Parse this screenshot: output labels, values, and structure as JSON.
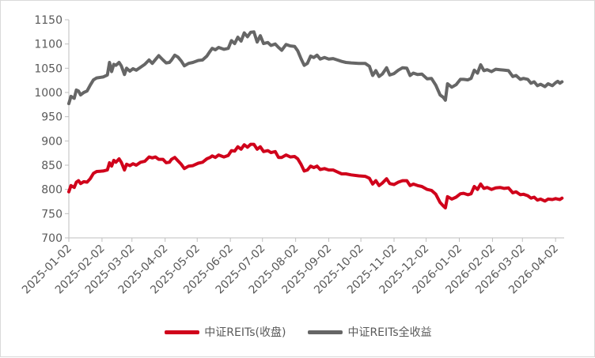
{
  "chart_data": {
    "type": "line",
    "title": "",
    "xlabel": "",
    "ylabel": "",
    "ylim": [
      700,
      1150
    ],
    "yticks": [
      700,
      750,
      800,
      850,
      900,
      950,
      1000,
      1050,
      1100,
      1150
    ],
    "xticks": [
      "2025-01-02",
      "2025-02-02",
      "2025-03-02",
      "2025-04-02",
      "2025-05-02",
      "2025-06-02",
      "2025-07-02",
      "2025-08-02",
      "2025-09-02",
      "2025-10-02",
      "2025-11-02",
      "2025-12-02",
      "2026-01-02",
      "2026-02-02",
      "2026-03-02",
      "2026-04-02"
    ],
    "legend_position": "bottom",
    "grid": false,
    "series": [
      {
        "name": "中证REITs(收盘)",
        "color": "#d0021b",
        "points": [
          [
            "2025-01-02",
            795
          ],
          [
            "2025-01-04",
            808
          ],
          [
            "2025-01-07",
            804
          ],
          [
            "2025-01-09",
            815
          ],
          [
            "2025-01-11",
            818
          ],
          [
            "2025-01-13",
            812
          ],
          [
            "2025-01-16",
            816
          ],
          [
            "2025-01-19",
            815
          ],
          [
            "2025-01-22",
            822
          ],
          [
            "2025-01-25",
            833
          ],
          [
            "2025-01-28",
            837
          ],
          [
            "2025-02-03",
            838
          ],
          [
            "2025-02-07",
            840
          ],
          [
            "2025-02-09",
            855
          ],
          [
            "2025-02-11",
            848
          ],
          [
            "2025-02-13",
            860
          ],
          [
            "2025-02-15",
            856
          ],
          [
            "2025-02-18",
            863
          ],
          [
            "2025-02-20",
            856
          ],
          [
            "2025-02-23",
            840
          ],
          [
            "2025-02-25",
            852
          ],
          [
            "2025-02-28",
            849
          ],
          [
            "2025-03-03",
            853
          ],
          [
            "2025-03-06",
            850
          ],
          [
            "2025-03-10",
            856
          ],
          [
            "2025-03-14",
            858
          ],
          [
            "2025-03-18",
            867
          ],
          [
            "2025-03-21",
            865
          ],
          [
            "2025-03-24",
            867
          ],
          [
            "2025-03-27",
            862
          ],
          [
            "2025-03-31",
            862
          ],
          [
            "2025-04-03",
            855
          ],
          [
            "2025-04-06",
            856
          ],
          [
            "2025-04-08",
            862
          ],
          [
            "2025-04-11",
            866
          ],
          [
            "2025-04-14",
            859
          ],
          [
            "2025-04-17",
            852
          ],
          [
            "2025-04-20",
            843
          ],
          [
            "2025-04-24",
            848
          ],
          [
            "2025-04-28",
            849
          ],
          [
            "2025-05-03",
            854
          ],
          [
            "2025-05-07",
            856
          ],
          [
            "2025-05-11",
            863
          ],
          [
            "2025-05-14",
            866
          ],
          [
            "2025-05-16",
            869
          ],
          [
            "2025-05-19",
            866
          ],
          [
            "2025-05-22",
            871
          ],
          [
            "2025-05-27",
            867
          ],
          [
            "2025-05-31",
            870
          ],
          [
            "2025-06-03",
            880
          ],
          [
            "2025-06-06",
            879
          ],
          [
            "2025-06-09",
            888
          ],
          [
            "2025-06-12",
            883
          ],
          [
            "2025-06-15",
            892
          ],
          [
            "2025-06-18",
            887
          ],
          [
            "2025-06-21",
            893
          ],
          [
            "2025-06-24",
            893
          ],
          [
            "2025-06-27",
            883
          ],
          [
            "2025-06-30",
            888
          ],
          [
            "2025-07-03",
            878
          ],
          [
            "2025-07-07",
            880
          ],
          [
            "2025-07-10",
            876
          ],
          [
            "2025-07-14",
            878
          ],
          [
            "2025-07-17",
            866
          ],
          [
            "2025-07-20",
            866
          ],
          [
            "2025-07-24",
            871
          ],
          [
            "2025-07-28",
            867
          ],
          [
            "2025-08-01",
            868
          ],
          [
            "2025-08-04",
            863
          ],
          [
            "2025-08-07",
            852
          ],
          [
            "2025-08-10",
            838
          ],
          [
            "2025-08-13",
            840
          ],
          [
            "2025-08-16",
            848
          ],
          [
            "2025-08-19",
            845
          ],
          [
            "2025-08-22",
            848
          ],
          [
            "2025-08-25",
            841
          ],
          [
            "2025-08-29",
            843
          ],
          [
            "2025-09-02",
            840
          ],
          [
            "2025-09-06",
            840
          ],
          [
            "2025-09-10",
            836
          ],
          [
            "2025-09-14",
            832
          ],
          [
            "2025-09-18",
            832
          ],
          [
            "2025-09-23",
            830
          ],
          [
            "2025-09-30",
            828
          ],
          [
            "2025-10-06",
            827
          ],
          [
            "2025-10-10",
            823
          ],
          [
            "2025-10-13",
            811
          ],
          [
            "2025-10-16",
            818
          ],
          [
            "2025-10-19",
            808
          ],
          [
            "2025-10-22",
            813
          ],
          [
            "2025-10-26",
            822
          ],
          [
            "2025-10-29",
            812
          ],
          [
            "2025-11-02",
            810
          ],
          [
            "2025-11-06",
            815
          ],
          [
            "2025-11-10",
            818
          ],
          [
            "2025-11-14",
            818
          ],
          [
            "2025-11-17",
            808
          ],
          [
            "2025-11-20",
            811
          ],
          [
            "2025-11-24",
            808
          ],
          [
            "2025-11-28",
            806
          ],
          [
            "2025-12-03",
            800
          ],
          [
            "2025-12-07",
            798
          ],
          [
            "2025-12-11",
            790
          ],
          [
            "2025-12-15",
            773
          ],
          [
            "2025-12-18",
            766
          ],
          [
            "2025-12-20",
            762
          ],
          [
            "2025-12-22",
            785
          ],
          [
            "2025-12-26",
            780
          ],
          [
            "2025-12-30",
            784
          ],
          [
            "2026-01-03",
            791
          ],
          [
            "2026-01-06",
            792
          ],
          [
            "2026-01-10",
            789
          ],
          [
            "2026-01-13",
            791
          ],
          [
            "2026-01-16",
            806
          ],
          [
            "2026-01-19",
            800
          ],
          [
            "2026-01-22",
            811
          ],
          [
            "2026-01-25",
            802
          ],
          [
            "2026-01-28",
            804
          ],
          [
            "2026-02-01",
            800
          ],
          [
            "2026-02-05",
            803
          ],
          [
            "2026-02-09",
            804
          ],
          [
            "2026-02-13",
            802
          ],
          [
            "2026-02-17",
            803
          ],
          [
            "2026-02-21",
            793
          ],
          [
            "2026-02-24",
            795
          ],
          [
            "2026-02-28",
            789
          ],
          [
            "2026-03-03",
            790
          ],
          [
            "2026-03-07",
            787
          ],
          [
            "2026-03-10",
            782
          ],
          [
            "2026-03-13",
            784
          ],
          [
            "2026-03-16",
            778
          ],
          [
            "2026-03-19",
            780
          ],
          [
            "2026-03-23",
            776
          ],
          [
            "2026-03-26",
            780
          ],
          [
            "2026-03-30",
            779
          ],
          [
            "2026-04-02",
            781
          ],
          [
            "2026-04-04",
            780
          ],
          [
            "2026-04-06",
            779
          ],
          [
            "2026-04-08",
            782
          ]
        ]
      },
      {
        "name": "中证REITs全收益",
        "color": "#666666",
        "points": [
          [
            "2025-01-02",
            977
          ],
          [
            "2025-01-04",
            992
          ],
          [
            "2025-01-07",
            988
          ],
          [
            "2025-01-09",
            1005
          ],
          [
            "2025-01-11",
            1003
          ],
          [
            "2025-01-13",
            995
          ],
          [
            "2025-01-16",
            1000
          ],
          [
            "2025-01-19",
            1003
          ],
          [
            "2025-01-22",
            1015
          ],
          [
            "2025-01-25",
            1026
          ],
          [
            "2025-01-28",
            1030
          ],
          [
            "2025-02-03",
            1032
          ],
          [
            "2025-02-07",
            1036
          ],
          [
            "2025-02-09",
            1062
          ],
          [
            "2025-02-11",
            1043
          ],
          [
            "2025-02-13",
            1058
          ],
          [
            "2025-02-15",
            1056
          ],
          [
            "2025-02-18",
            1062
          ],
          [
            "2025-02-20",
            1055
          ],
          [
            "2025-02-23",
            1037
          ],
          [
            "2025-02-25",
            1050
          ],
          [
            "2025-02-28",
            1044
          ],
          [
            "2025-03-03",
            1049
          ],
          [
            "2025-03-06",
            1046
          ],
          [
            "2025-03-10",
            1052
          ],
          [
            "2025-03-14",
            1058
          ],
          [
            "2025-03-18",
            1067
          ],
          [
            "2025-03-21",
            1060
          ],
          [
            "2025-03-24",
            1068
          ],
          [
            "2025-03-27",
            1076
          ],
          [
            "2025-03-31",
            1067
          ],
          [
            "2025-04-03",
            1061
          ],
          [
            "2025-04-06",
            1062
          ],
          [
            "2025-04-08",
            1067
          ],
          [
            "2025-04-11",
            1077
          ],
          [
            "2025-04-14",
            1073
          ],
          [
            "2025-04-17",
            1065
          ],
          [
            "2025-04-20",
            1055
          ],
          [
            "2025-04-24",
            1060
          ],
          [
            "2025-04-28",
            1062
          ],
          [
            "2025-05-03",
            1066
          ],
          [
            "2025-05-07",
            1067
          ],
          [
            "2025-05-11",
            1075
          ],
          [
            "2025-05-14",
            1085
          ],
          [
            "2025-05-16",
            1091
          ],
          [
            "2025-05-19",
            1088
          ],
          [
            "2025-05-22",
            1093
          ],
          [
            "2025-05-27",
            1089
          ],
          [
            "2025-05-31",
            1091
          ],
          [
            "2025-06-03",
            1107
          ],
          [
            "2025-06-06",
            1101
          ],
          [
            "2025-06-09",
            1114
          ],
          [
            "2025-06-12",
            1106
          ],
          [
            "2025-06-15",
            1123
          ],
          [
            "2025-06-18",
            1115
          ],
          [
            "2025-06-21",
            1124
          ],
          [
            "2025-06-24",
            1125
          ],
          [
            "2025-06-27",
            1104
          ],
          [
            "2025-06-30",
            1117
          ],
          [
            "2025-07-03",
            1101
          ],
          [
            "2025-07-07",
            1103
          ],
          [
            "2025-07-10",
            1097
          ],
          [
            "2025-07-14",
            1100
          ],
          [
            "2025-07-17",
            1093
          ],
          [
            "2025-07-20",
            1087
          ],
          [
            "2025-07-24",
            1099
          ],
          [
            "2025-07-28",
            1096
          ],
          [
            "2025-08-01",
            1095
          ],
          [
            "2025-08-04",
            1086
          ],
          [
            "2025-08-07",
            1070
          ],
          [
            "2025-08-10",
            1056
          ],
          [
            "2025-08-13",
            1060
          ],
          [
            "2025-08-16",
            1075
          ],
          [
            "2025-08-19",
            1072
          ],
          [
            "2025-08-22",
            1077
          ],
          [
            "2025-08-25",
            1069
          ],
          [
            "2025-08-29",
            1072
          ],
          [
            "2025-09-02",
            1069
          ],
          [
            "2025-09-06",
            1070
          ],
          [
            "2025-09-10",
            1067
          ],
          [
            "2025-09-14",
            1064
          ],
          [
            "2025-09-18",
            1062
          ],
          [
            "2025-09-23",
            1061
          ],
          [
            "2025-09-30",
            1060
          ],
          [
            "2025-10-06",
            1060
          ],
          [
            "2025-10-10",
            1054
          ],
          [
            "2025-10-13",
            1035
          ],
          [
            "2025-10-16",
            1045
          ],
          [
            "2025-10-19",
            1033
          ],
          [
            "2025-10-22",
            1038
          ],
          [
            "2025-10-26",
            1051
          ],
          [
            "2025-10-29",
            1036
          ],
          [
            "2025-11-02",
            1039
          ],
          [
            "2025-11-06",
            1046
          ],
          [
            "2025-11-10",
            1051
          ],
          [
            "2025-11-14",
            1050
          ],
          [
            "2025-11-17",
            1035
          ],
          [
            "2025-11-20",
            1040
          ],
          [
            "2025-11-24",
            1037
          ],
          [
            "2025-11-28",
            1038
          ],
          [
            "2025-12-03",
            1028
          ],
          [
            "2025-12-07",
            1029
          ],
          [
            "2025-12-11",
            1015
          ],
          [
            "2025-12-15",
            995
          ],
          [
            "2025-12-18",
            990
          ],
          [
            "2025-12-20",
            984
          ],
          [
            "2025-12-22",
            1018
          ],
          [
            "2025-12-26",
            1011
          ],
          [
            "2025-12-30",
            1016
          ],
          [
            "2026-01-03",
            1027
          ],
          [
            "2026-01-06",
            1027
          ],
          [
            "2026-01-10",
            1026
          ],
          [
            "2026-01-13",
            1029
          ],
          [
            "2026-01-16",
            1046
          ],
          [
            "2026-01-19",
            1040
          ],
          [
            "2026-01-22",
            1057
          ],
          [
            "2026-01-25",
            1045
          ],
          [
            "2026-01-28",
            1047
          ],
          [
            "2026-02-01",
            1043
          ],
          [
            "2026-02-05",
            1048
          ],
          [
            "2026-02-09",
            1047
          ],
          [
            "2026-02-13",
            1046
          ],
          [
            "2026-02-17",
            1045
          ],
          [
            "2026-02-21",
            1033
          ],
          [
            "2026-02-24",
            1035
          ],
          [
            "2026-02-28",
            1027
          ],
          [
            "2026-03-03",
            1029
          ],
          [
            "2026-03-07",
            1027
          ],
          [
            "2026-03-10",
            1019
          ],
          [
            "2026-03-13",
            1022
          ],
          [
            "2026-03-16",
            1014
          ],
          [
            "2026-03-19",
            1017
          ],
          [
            "2026-03-23",
            1012
          ],
          [
            "2026-03-26",
            1018
          ],
          [
            "2026-03-30",
            1014
          ],
          [
            "2026-04-02",
            1020
          ],
          [
            "2026-04-04",
            1023
          ],
          [
            "2026-04-06",
            1019
          ],
          [
            "2026-04-08",
            1022
          ]
        ]
      }
    ]
  }
}
